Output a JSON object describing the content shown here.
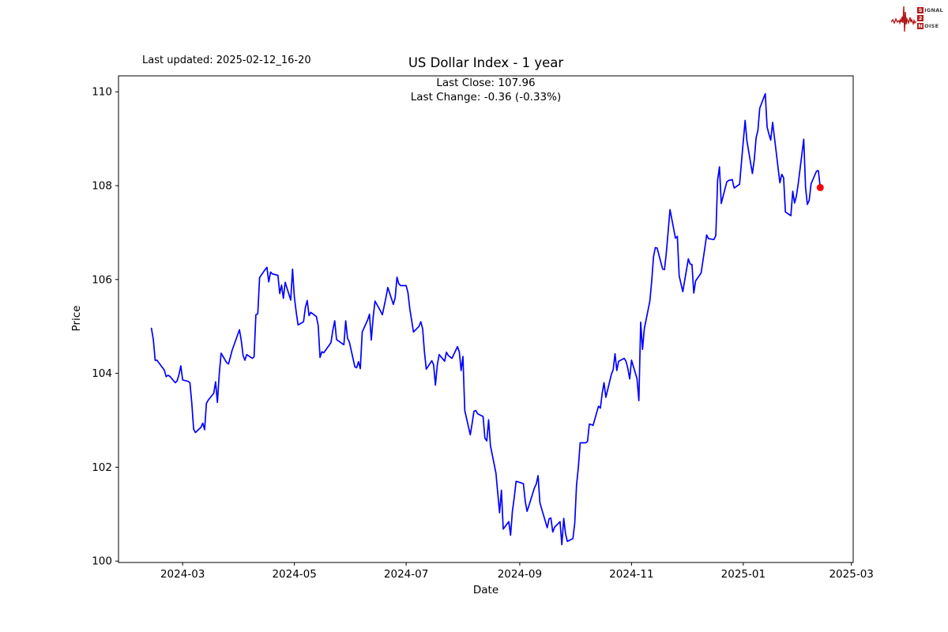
{
  "header": {
    "last_updated": "Last updated: 2025-02-12_16-20",
    "logo": {
      "color": "#b51a1a",
      "rows": [
        {
          "initial": "S",
          "rest": "IGNAL"
        },
        {
          "initial": "2",
          "rest": ""
        },
        {
          "initial": "N",
          "rest": "OISE"
        }
      ]
    }
  },
  "chart_data": {
    "type": "line",
    "title": "US Dollar Index - 1 year",
    "annotations": [
      "Last Close: 107.96",
      "Last Change: -0.36 (-0.33%)"
    ],
    "xlabel": "Date",
    "ylabel": "Price",
    "grid": false,
    "legend": "none",
    "line_color": "#0000ff",
    "marker_color": "#ff0000",
    "axis_color": "#000000",
    "ylim": [
      99.97,
      110.34
    ],
    "xlim": [
      "2024-01-26",
      "2025-03-02"
    ],
    "y_ticks": [
      100,
      102,
      104,
      106,
      108,
      110
    ],
    "x_ticks": [
      {
        "date": "2024-03-01",
        "label": "2024-03"
      },
      {
        "date": "2024-05-01",
        "label": "2024-05"
      },
      {
        "date": "2024-07-01",
        "label": "2024-07"
      },
      {
        "date": "2024-09-01",
        "label": "2024-09"
      },
      {
        "date": "2024-11-01",
        "label": "2024-11"
      },
      {
        "date": "2025-01-01",
        "label": "2025-01"
      },
      {
        "date": "2025-03-01",
        "label": "2025-03"
      }
    ],
    "series": [
      {
        "name": "US Dollar Index",
        "last_close": 107.96,
        "last_change": -0.36,
        "last_change_pct": -0.33,
        "points": [
          [
            "2024-02-13",
            104.96
          ],
          [
            "2024-02-14",
            104.72
          ],
          [
            "2024-02-15",
            104.28
          ],
          [
            "2024-02-16",
            104.28
          ],
          [
            "2024-02-20",
            104.07
          ],
          [
            "2024-02-21",
            103.93
          ],
          [
            "2024-02-22",
            103.96
          ],
          [
            "2024-02-23",
            103.94
          ],
          [
            "2024-02-26",
            103.8
          ],
          [
            "2024-02-27",
            103.84
          ],
          [
            "2024-02-28",
            103.97
          ],
          [
            "2024-02-29",
            104.16
          ],
          [
            "2024-03-01",
            103.86
          ],
          [
            "2024-03-04",
            103.83
          ],
          [
            "2024-03-05",
            103.8
          ],
          [
            "2024-03-06",
            103.36
          ],
          [
            "2024-03-07",
            102.81
          ],
          [
            "2024-03-08",
            102.74
          ],
          [
            "2024-03-11",
            102.85
          ],
          [
            "2024-03-12",
            102.94
          ],
          [
            "2024-03-13",
            102.8
          ],
          [
            "2024-03-14",
            103.36
          ],
          [
            "2024-03-15",
            103.43
          ],
          [
            "2024-03-18",
            103.58
          ],
          [
            "2024-03-19",
            103.82
          ],
          [
            "2024-03-20",
            103.38
          ],
          [
            "2024-03-21",
            104.0
          ],
          [
            "2024-03-22",
            104.43
          ],
          [
            "2024-03-25",
            104.23
          ],
          [
            "2024-03-26",
            104.2
          ],
          [
            "2024-03-27",
            104.34
          ],
          [
            "2024-03-28",
            104.49
          ],
          [
            "2024-04-01",
            104.93
          ],
          [
            "2024-04-02",
            104.7
          ],
          [
            "2024-04-03",
            104.38
          ],
          [
            "2024-04-04",
            104.28
          ],
          [
            "2024-04-05",
            104.4
          ],
          [
            "2024-04-08",
            104.32
          ],
          [
            "2024-04-09",
            104.35
          ],
          [
            "2024-04-10",
            105.25
          ],
          [
            "2024-04-11",
            105.27
          ],
          [
            "2024-04-12",
            106.04
          ],
          [
            "2024-04-15",
            106.21
          ],
          [
            "2024-04-16",
            106.26
          ],
          [
            "2024-04-17",
            105.95
          ],
          [
            "2024-04-18",
            106.16
          ],
          [
            "2024-04-19",
            106.12
          ],
          [
            "2024-04-22",
            106.09
          ],
          [
            "2024-04-23",
            105.7
          ],
          [
            "2024-04-24",
            105.88
          ],
          [
            "2024-04-25",
            105.6
          ],
          [
            "2024-04-26",
            105.94
          ],
          [
            "2024-04-29",
            105.56
          ],
          [
            "2024-04-30",
            106.22
          ],
          [
            "2024-05-01",
            105.63
          ],
          [
            "2024-05-02",
            105.3
          ],
          [
            "2024-05-03",
            105.03
          ],
          [
            "2024-05-06",
            105.1
          ],
          [
            "2024-05-07",
            105.41
          ],
          [
            "2024-05-08",
            105.55
          ],
          [
            "2024-05-09",
            105.23
          ],
          [
            "2024-05-10",
            105.3
          ],
          [
            "2024-05-13",
            105.21
          ],
          [
            "2024-05-14",
            105.02
          ],
          [
            "2024-05-15",
            104.34
          ],
          [
            "2024-05-16",
            104.46
          ],
          [
            "2024-05-17",
            104.44
          ],
          [
            "2024-05-20",
            104.6
          ],
          [
            "2024-05-21",
            104.66
          ],
          [
            "2024-05-22",
            104.92
          ],
          [
            "2024-05-23",
            105.12
          ],
          [
            "2024-05-24",
            104.72
          ],
          [
            "2024-05-28",
            104.61
          ],
          [
            "2024-05-29",
            105.12
          ],
          [
            "2024-05-30",
            104.75
          ],
          [
            "2024-05-31",
            104.67
          ],
          [
            "2024-06-03",
            104.14
          ],
          [
            "2024-06-04",
            104.12
          ],
          [
            "2024-06-05",
            104.25
          ],
          [
            "2024-06-06",
            104.1
          ],
          [
            "2024-06-07",
            104.88
          ],
          [
            "2024-06-10",
            105.14
          ],
          [
            "2024-06-11",
            105.26
          ],
          [
            "2024-06-12",
            104.71
          ],
          [
            "2024-06-13",
            105.2
          ],
          [
            "2024-06-14",
            105.54
          ],
          [
            "2024-06-17",
            105.33
          ],
          [
            "2024-06-18",
            105.25
          ],
          [
            "2024-06-20",
            105.62
          ],
          [
            "2024-06-21",
            105.83
          ],
          [
            "2024-06-24",
            105.47
          ],
          [
            "2024-06-25",
            105.61
          ],
          [
            "2024-06-26",
            106.05
          ],
          [
            "2024-06-27",
            105.91
          ],
          [
            "2024-06-28",
            105.87
          ],
          [
            "2024-07-01",
            105.87
          ],
          [
            "2024-07-02",
            105.72
          ],
          [
            "2024-07-03",
            105.37
          ],
          [
            "2024-07-05",
            104.88
          ],
          [
            "2024-07-08",
            105.0
          ],
          [
            "2024-07-09",
            105.1
          ],
          [
            "2024-07-10",
            104.95
          ],
          [
            "2024-07-11",
            104.45
          ],
          [
            "2024-07-12",
            104.09
          ],
          [
            "2024-07-15",
            104.27
          ],
          [
            "2024-07-16",
            104.18
          ],
          [
            "2024-07-17",
            103.75
          ],
          [
            "2024-07-18",
            104.17
          ],
          [
            "2024-07-19",
            104.4
          ],
          [
            "2024-07-22",
            104.26
          ],
          [
            "2024-07-23",
            104.45
          ],
          [
            "2024-07-24",
            104.38
          ],
          [
            "2024-07-25",
            104.35
          ],
          [
            "2024-07-26",
            104.32
          ],
          [
            "2024-07-29",
            104.57
          ],
          [
            "2024-07-30",
            104.46
          ],
          [
            "2024-07-31",
            104.06
          ],
          [
            "2024-08-01",
            104.36
          ],
          [
            "2024-08-02",
            103.21
          ],
          [
            "2024-08-05",
            102.69
          ],
          [
            "2024-08-06",
            102.93
          ],
          [
            "2024-08-07",
            103.19
          ],
          [
            "2024-08-08",
            103.21
          ],
          [
            "2024-08-09",
            103.14
          ],
          [
            "2024-08-12",
            103.08
          ],
          [
            "2024-08-13",
            102.62
          ],
          [
            "2024-08-14",
            102.56
          ],
          [
            "2024-08-15",
            103.01
          ],
          [
            "2024-08-16",
            102.46
          ],
          [
            "2024-08-19",
            101.87
          ],
          [
            "2024-08-20",
            101.44
          ],
          [
            "2024-08-21",
            101.03
          ],
          [
            "2024-08-22",
            101.51
          ],
          [
            "2024-08-23",
            100.68
          ],
          [
            "2024-08-26",
            100.84
          ],
          [
            "2024-08-27",
            100.55
          ],
          [
            "2024-08-28",
            101.06
          ],
          [
            "2024-08-29",
            101.35
          ],
          [
            "2024-08-30",
            101.7
          ],
          [
            "2024-09-03",
            101.65
          ],
          [
            "2024-09-04",
            101.27
          ],
          [
            "2024-09-05",
            101.06
          ],
          [
            "2024-09-06",
            101.18
          ],
          [
            "2024-09-09",
            101.56
          ],
          [
            "2024-09-10",
            101.64
          ],
          [
            "2024-09-11",
            101.82
          ],
          [
            "2024-09-12",
            101.25
          ],
          [
            "2024-09-13",
            101.11
          ],
          [
            "2024-09-16",
            100.71
          ],
          [
            "2024-09-17",
            100.9
          ],
          [
            "2024-09-18",
            100.92
          ],
          [
            "2024-09-19",
            100.62
          ],
          [
            "2024-09-20",
            100.72
          ],
          [
            "2024-09-23",
            100.84
          ],
          [
            "2024-09-24",
            100.35
          ],
          [
            "2024-09-25",
            100.91
          ],
          [
            "2024-09-26",
            100.58
          ],
          [
            "2024-09-27",
            100.42
          ],
          [
            "2024-09-30",
            100.48
          ],
          [
            "2024-10-01",
            100.8
          ],
          [
            "2024-10-02",
            101.62
          ],
          [
            "2024-10-03",
            102.0
          ],
          [
            "2024-10-04",
            102.52
          ],
          [
            "2024-10-07",
            102.52
          ],
          [
            "2024-10-08",
            102.55
          ],
          [
            "2024-10-09",
            102.92
          ],
          [
            "2024-10-10",
            102.91
          ],
          [
            "2024-10-11",
            102.89
          ],
          [
            "2024-10-14",
            103.3
          ],
          [
            "2024-10-15",
            103.26
          ],
          [
            "2024-10-16",
            103.58
          ],
          [
            "2024-10-17",
            103.8
          ],
          [
            "2024-10-18",
            103.49
          ],
          [
            "2024-10-21",
            103.98
          ],
          [
            "2024-10-22",
            104.08
          ],
          [
            "2024-10-23",
            104.42
          ],
          [
            "2024-10-24",
            104.06
          ],
          [
            "2024-10-25",
            104.26
          ],
          [
            "2024-10-28",
            104.32
          ],
          [
            "2024-10-29",
            104.26
          ],
          [
            "2024-10-30",
            104.11
          ],
          [
            "2024-10-31",
            103.88
          ],
          [
            "2024-11-01",
            104.28
          ],
          [
            "2024-11-04",
            103.89
          ],
          [
            "2024-11-05",
            103.42
          ],
          [
            "2024-11-06",
            105.09
          ],
          [
            "2024-11-07",
            104.51
          ],
          [
            "2024-11-08",
            104.95
          ],
          [
            "2024-11-11",
            105.54
          ],
          [
            "2024-11-12",
            105.96
          ],
          [
            "2024-11-13",
            106.48
          ],
          [
            "2024-11-14",
            106.68
          ],
          [
            "2024-11-15",
            106.67
          ],
          [
            "2024-11-18",
            106.22
          ],
          [
            "2024-11-19",
            106.21
          ],
          [
            "2024-11-20",
            106.56
          ],
          [
            "2024-11-21",
            107.03
          ],
          [
            "2024-11-22",
            107.49
          ],
          [
            "2024-11-25",
            106.88
          ],
          [
            "2024-11-26",
            106.92
          ],
          [
            "2024-11-27",
            106.08
          ],
          [
            "2024-11-29",
            105.74
          ],
          [
            "2024-12-02",
            106.44
          ],
          [
            "2024-12-03",
            106.33
          ],
          [
            "2024-12-04",
            106.32
          ],
          [
            "2024-12-05",
            105.71
          ],
          [
            "2024-12-06",
            105.97
          ],
          [
            "2024-12-09",
            106.14
          ],
          [
            "2024-12-10",
            106.4
          ],
          [
            "2024-12-11",
            106.66
          ],
          [
            "2024-12-12",
            106.95
          ],
          [
            "2024-12-13",
            106.87
          ],
          [
            "2024-12-16",
            106.85
          ],
          [
            "2024-12-17",
            106.94
          ],
          [
            "2024-12-18",
            108.12
          ],
          [
            "2024-12-19",
            108.4
          ],
          [
            "2024-12-20",
            107.62
          ],
          [
            "2024-12-23",
            108.08
          ],
          [
            "2024-12-24",
            108.11
          ],
          [
            "2024-12-26",
            108.13
          ],
          [
            "2024-12-27",
            107.95
          ],
          [
            "2024-12-30",
            108.03
          ],
          [
            "2024-12-31",
            108.49
          ],
          [
            "2025-01-02",
            109.39
          ],
          [
            "2025-01-03",
            108.95
          ],
          [
            "2025-01-06",
            108.26
          ],
          [
            "2025-01-07",
            108.55
          ],
          [
            "2025-01-08",
            109.02
          ],
          [
            "2025-01-09",
            109.18
          ],
          [
            "2025-01-10",
            109.65
          ],
          [
            "2025-01-13",
            109.96
          ],
          [
            "2025-01-14",
            109.25
          ],
          [
            "2025-01-15",
            109.1
          ],
          [
            "2025-01-16",
            108.97
          ],
          [
            "2025-01-17",
            109.35
          ],
          [
            "2025-01-21",
            108.06
          ],
          [
            "2025-01-22",
            108.24
          ],
          [
            "2025-01-23",
            108.17
          ],
          [
            "2025-01-24",
            107.44
          ],
          [
            "2025-01-27",
            107.36
          ],
          [
            "2025-01-28",
            107.88
          ],
          [
            "2025-01-29",
            107.63
          ],
          [
            "2025-01-30",
            107.78
          ],
          [
            "2025-01-31",
            108.04
          ],
          [
            "2025-02-03",
            108.99
          ],
          [
            "2025-02-04",
            107.96
          ],
          [
            "2025-02-05",
            107.6
          ],
          [
            "2025-02-06",
            107.69
          ],
          [
            "2025-02-07",
            108.04
          ],
          [
            "2025-02-10",
            108.31
          ],
          [
            "2025-02-11",
            108.32
          ],
          [
            "2025-02-12",
            107.96
          ]
        ]
      }
    ]
  }
}
